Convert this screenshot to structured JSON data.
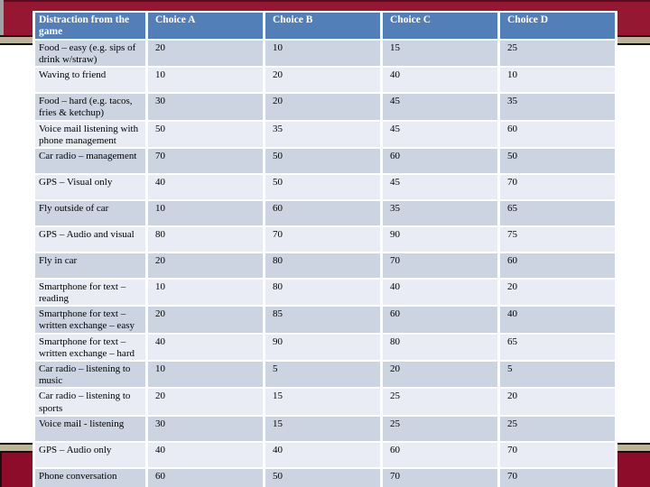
{
  "slide": {
    "theme": {
      "maroon_band": "#951732",
      "maroon_band_bottom": "#8c0c29",
      "tan_accent_bar": "#bdb397",
      "header_blue": "#527fb8",
      "row_dark": "#ccd4e2",
      "row_light": "#e9ecf4",
      "header_text": "#ffffff",
      "body_text": "#000000"
    },
    "table": {
      "headers": [
        "Distraction from the game",
        "Choice A",
        "Choice B",
        "Choice C",
        "Choice D"
      ],
      "rows": [
        {
          "label": "Food – easy (e.g. sips of drink w/straw)",
          "values": [
            "20",
            "10",
            "15",
            "25"
          ]
        },
        {
          "label": "Waving to friend",
          "values": [
            "10",
            "20",
            "40",
            "10"
          ]
        },
        {
          "label": "Food – hard (e.g. tacos, fries & ketchup)",
          "values": [
            "30",
            "20",
            "45",
            "35"
          ]
        },
        {
          "label": "Voice mail listening with phone management",
          "values": [
            "50",
            "35",
            "45",
            "60"
          ]
        },
        {
          "label": "Car radio – management",
          "values": [
            "70",
            "50",
            "60",
            "50"
          ]
        },
        {
          "label": "GPS – Visual only",
          "values": [
            "40",
            "50",
            "45",
            "70"
          ]
        },
        {
          "label": "Fly outside of car",
          "values": [
            "10",
            "60",
            "35",
            "65"
          ]
        },
        {
          "label": "GPS – Audio and visual",
          "values": [
            "80",
            "70",
            "90",
            "75"
          ]
        },
        {
          "label": "Fly in car",
          "values": [
            "20",
            "80",
            "70",
            "60"
          ]
        },
        {
          "label": "Smartphone for text – reading",
          "values": [
            "10",
            "80",
            "40",
            "20"
          ]
        },
        {
          "label": "Smartphone for text – written exchange – easy",
          "values": [
            "20",
            "85",
            "60",
            "40"
          ]
        },
        {
          "label": "Smartphone for text – written exchange – hard",
          "values": [
            "40",
            "90",
            "80",
            "65"
          ]
        },
        {
          "label": "Car radio – listening to music",
          "values": [
            "10",
            "5",
            "20",
            "5"
          ]
        },
        {
          "label": "Car radio – listening to sports",
          "values": [
            "20",
            "15",
            "25",
            "20"
          ]
        },
        {
          "label": "Voice mail - listening",
          "values": [
            "30",
            "15",
            "25",
            "25"
          ]
        },
        {
          "label": "GPS – Audio only",
          "values": [
            "40",
            "40",
            "60",
            "70"
          ]
        },
        {
          "label": "Phone conversation",
          "values": [
            "60",
            "50",
            "70",
            "70"
          ]
        }
      ]
    }
  }
}
